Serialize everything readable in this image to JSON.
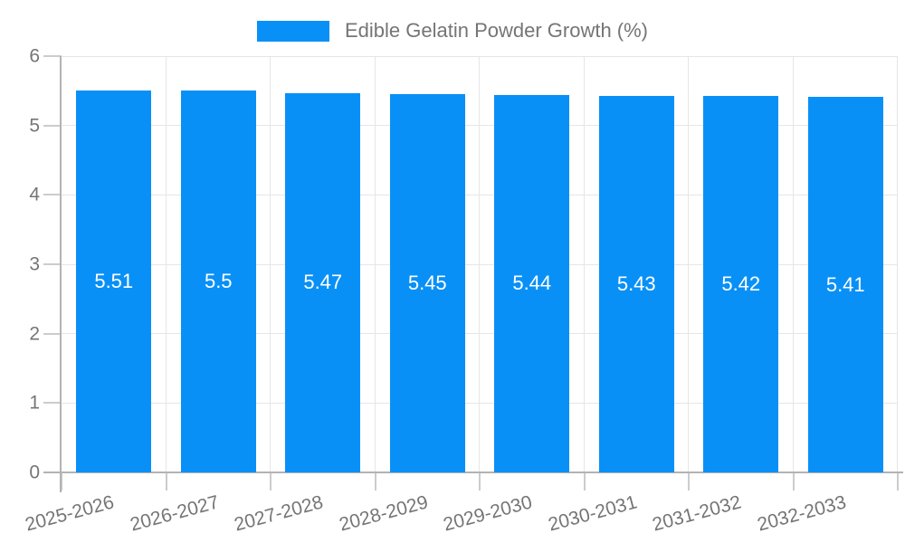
{
  "chart_data": {
    "type": "bar",
    "legend_label": "Edible Gelatin Powder Growth (%)",
    "legend_position": "top",
    "categories": [
      "2025-2026",
      "2026-2027",
      "2027-2028",
      "2028-2029",
      "2029-2030",
      "2030-2031",
      "2031-2032",
      "2032-2033"
    ],
    "values": [
      5.51,
      5.5,
      5.47,
      5.45,
      5.44,
      5.43,
      5.42,
      5.41
    ],
    "value_labels": [
      "5.51",
      "5.5",
      "5.47",
      "5.45",
      "5.44",
      "5.43",
      "5.42",
      "5.41"
    ],
    "xlabel": "",
    "ylabel": "",
    "ylim": [
      0,
      6
    ],
    "ytick_labels": [
      "0",
      "1",
      "2",
      "3",
      "4",
      "5",
      "6"
    ],
    "grid": true,
    "x_label_rotation_deg": -15,
    "colors": {
      "bar": "#0990f7",
      "axis_text": "#757575",
      "grid_line": "#e6e6e6",
      "axis_line": "#b3b3b3",
      "tick": "#cccccc",
      "value_label": "#ffffff",
      "background": "#ffffff"
    }
  }
}
